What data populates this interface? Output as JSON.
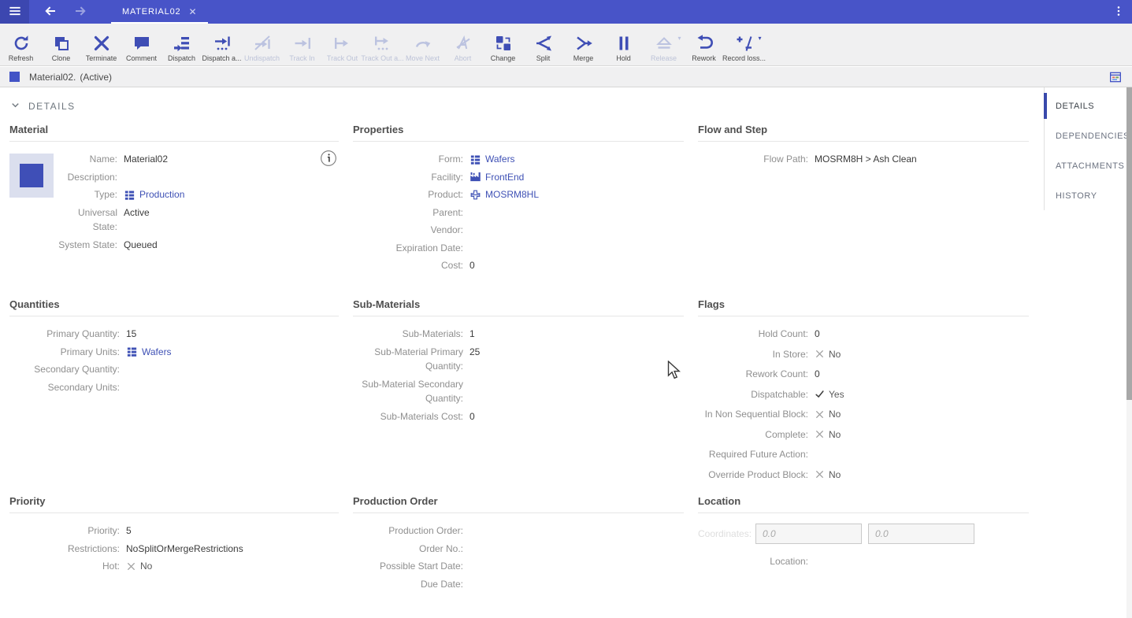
{
  "colors": {
    "topbar": "#4854c8",
    "topbar_dark": "#3c47b0",
    "toolbar_icon": "#3f4eb5",
    "link": "#3f51b5",
    "active_nav_indicator": "#3949ab",
    "entity_swatch": "#4354c6"
  },
  "topbar": {
    "tab": {
      "label": "MATERIAL02"
    }
  },
  "toolbar": {
    "buttons": [
      {
        "label": "Refresh",
        "icon": "refresh-icon",
        "enabled": true
      },
      {
        "label": "Clone",
        "icon": "clone-icon",
        "enabled": true
      },
      {
        "label": "Terminate",
        "icon": "terminate-icon",
        "enabled": true
      },
      {
        "label": "Comment",
        "icon": "comment-icon",
        "enabled": true
      },
      {
        "label": "Dispatch",
        "icon": "dispatch-icon",
        "enabled": true
      },
      {
        "label": "Dispatch a...",
        "icon": "dispatch-alt-icon",
        "enabled": true
      },
      {
        "label": "Undispatch",
        "icon": "undispatch-icon",
        "enabled": false
      },
      {
        "label": "Track In",
        "icon": "track-in-icon",
        "enabled": false
      },
      {
        "label": "Track Out",
        "icon": "track-out-icon",
        "enabled": false
      },
      {
        "label": "Track Out a...",
        "icon": "track-out-alt-icon",
        "enabled": false
      },
      {
        "label": "Move Next",
        "icon": "move-next-icon",
        "enabled": false
      },
      {
        "label": "Abort",
        "icon": "abort-icon",
        "enabled": false
      },
      {
        "label": "Change",
        "icon": "change-icon",
        "enabled": true
      },
      {
        "label": "Split",
        "icon": "split-icon",
        "enabled": true
      },
      {
        "label": "Merge",
        "icon": "merge-icon",
        "enabled": true
      },
      {
        "label": "Hold",
        "icon": "hold-icon",
        "enabled": true
      },
      {
        "label": "Release",
        "icon": "release-icon",
        "enabled": false,
        "caret": true
      },
      {
        "label": "Rework",
        "icon": "rework-icon",
        "enabled": true
      },
      {
        "label": "Record loss...",
        "icon": "record-loss-icon",
        "enabled": true,
        "caret": true
      }
    ]
  },
  "entity_bar": {
    "title": "Material02.",
    "status": "(Active)"
  },
  "details_header": {
    "label": "DETAILS"
  },
  "sidebar": {
    "items": [
      {
        "label": "DETAILS",
        "active": true
      },
      {
        "label": "DEPENDENCIES",
        "active": false
      },
      {
        "label": "ATTACHMENTS",
        "active": false
      },
      {
        "label": "HISTORY",
        "active": false
      }
    ]
  },
  "sections": [
    {
      "title": "Material",
      "variant": "material",
      "fields": [
        {
          "label": "Name:",
          "value": "Material02",
          "type": "text"
        },
        {
          "label": "Description:",
          "value": "",
          "type": "text"
        },
        {
          "label": "Type:",
          "value": "Production",
          "type": "link",
          "icon": "grid-icon"
        },
        {
          "label": "Universal State:",
          "value": "Active",
          "type": "text"
        },
        {
          "label": "System State:",
          "value": "Queued",
          "type": "text"
        }
      ]
    },
    {
      "title": "Properties",
      "fields": [
        {
          "label": "Form:",
          "value": "Wafers",
          "type": "link",
          "icon": "grid-icon"
        },
        {
          "label": "Facility:",
          "value": "FrontEnd",
          "type": "link",
          "icon": "factory-icon"
        },
        {
          "label": "Product:",
          "value": "MOSRM8HL",
          "type": "link",
          "icon": "product-icon"
        },
        {
          "label": "Parent:",
          "value": "",
          "type": "text"
        },
        {
          "label": "Vendor:",
          "value": "",
          "type": "text"
        },
        {
          "label": "Expiration Date:",
          "value": "",
          "type": "text"
        },
        {
          "label": "Cost:",
          "value": "0",
          "type": "text"
        }
      ]
    },
    {
      "title": "Flow and Step",
      "fields": [
        {
          "label": "Flow Path:",
          "value": "MOSRM8H > Ash Clean",
          "type": "text"
        }
      ]
    },
    {
      "title": "Quantities",
      "fields": [
        {
          "label": "Primary Quantity:",
          "value": "15",
          "type": "text"
        },
        {
          "label": "Primary Units:",
          "value": "Wafers",
          "type": "link",
          "icon": "grid-icon"
        },
        {
          "label": "Secondary Quantity:",
          "value": "",
          "type": "text"
        },
        {
          "label": "Secondary Units:",
          "value": "",
          "type": "text"
        }
      ]
    },
    {
      "title": "Sub-Materials",
      "fields": [
        {
          "label": "Sub-Materials:",
          "value": "1",
          "type": "text"
        },
        {
          "label": "Sub-Material Primary Quantity:",
          "value": "25",
          "type": "text"
        },
        {
          "label": "Sub-Material Secondary Quantity:",
          "value": "",
          "type": "text"
        },
        {
          "label": "Sub-Materials Cost:",
          "value": "0",
          "type": "text"
        }
      ]
    },
    {
      "title": "Flags",
      "fields": [
        {
          "label": "Hold Count:",
          "value": "0",
          "type": "text"
        },
        {
          "label": "In Store:",
          "value": "No",
          "type": "flag",
          "flag": "no"
        },
        {
          "label": "Rework Count:",
          "value": "0",
          "type": "text"
        },
        {
          "label": "Dispatchable:",
          "value": "Yes",
          "type": "flag",
          "flag": "yes"
        },
        {
          "label": "In Non Sequential Block:",
          "value": "No",
          "type": "flag",
          "flag": "no"
        },
        {
          "label": "Complete:",
          "value": "No",
          "type": "flag",
          "flag": "no"
        },
        {
          "label": "Required Future Action:",
          "value": "",
          "type": "text"
        },
        {
          "label": "Override Product Block:",
          "value": "No",
          "type": "flag",
          "flag": "no"
        }
      ]
    },
    {
      "title": "Priority",
      "fields": [
        {
          "label": "Priority:",
          "value": "5",
          "type": "text"
        },
        {
          "label": "Restrictions:",
          "value": "NoSplitOrMergeRestrictions",
          "type": "text"
        },
        {
          "label": "Hot:",
          "value": "No",
          "type": "flag",
          "flag": "no"
        }
      ]
    },
    {
      "title": "Production Order",
      "fields": [
        {
          "label": "Production Order:",
          "value": "",
          "type": "text"
        },
        {
          "label": "Order No.:",
          "value": "",
          "type": "text"
        },
        {
          "label": "Possible Start Date:",
          "value": "",
          "type": "text"
        },
        {
          "label": "Due Date:",
          "value": "",
          "type": "text"
        }
      ]
    },
    {
      "title": "Location",
      "variant": "location",
      "fields": [
        {
          "label": "Coordinates:",
          "type": "coords",
          "inputs": [
            "0.0",
            "0.0"
          ]
        },
        {
          "label": "Location:",
          "value": "",
          "type": "text"
        }
      ]
    }
  ]
}
